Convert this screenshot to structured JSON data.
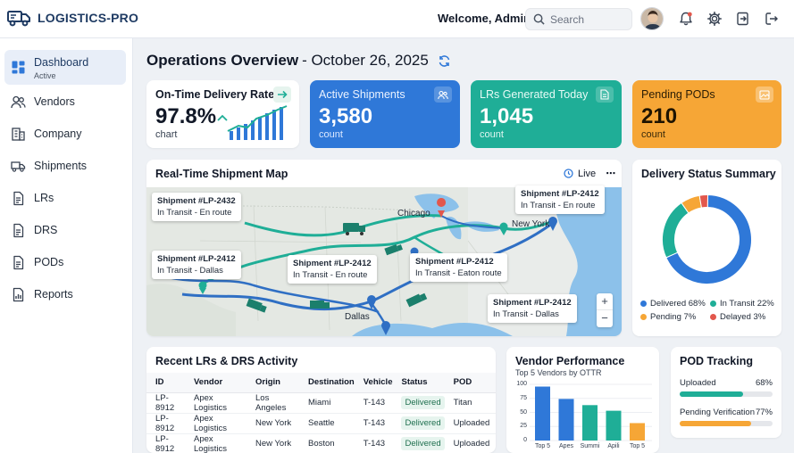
{
  "header": {
    "brand": "LOGISTICS-PRO",
    "welcome": "Welcome, Admin!",
    "search_placeholder": "Search"
  },
  "sidebar": {
    "items": [
      {
        "label": "Dashboard",
        "sub": "Active",
        "icon": "dashboard-icon"
      },
      {
        "label": "Vendors",
        "icon": "users-icon"
      },
      {
        "label": "Company",
        "icon": "building-icon"
      },
      {
        "label": "Shipments",
        "icon": "truck-icon"
      },
      {
        "label": "LRs",
        "icon": "document-icon"
      },
      {
        "label": "DRS",
        "icon": "document-icon"
      },
      {
        "label": "PODs",
        "icon": "document-icon"
      },
      {
        "label": "Reports",
        "icon": "report-icon"
      }
    ]
  },
  "page": {
    "title": "Operations Overview",
    "date": " - October 26, 2025"
  },
  "kpis": [
    {
      "label": "On-Time Delivery Rate",
      "value": "97.8%",
      "unit": "chart",
      "color": "#ffffff"
    },
    {
      "label": "Active Shipments",
      "value": "3,580",
      "unit": "count",
      "color": "#2f78d8"
    },
    {
      "label": "LRs Generated Today",
      "value": "1,045",
      "unit": "count",
      "color": "#1fae97"
    },
    {
      "label": "Pending PODs",
      "value": "210",
      "unit": "count",
      "color": "#f6a636"
    }
  ],
  "map": {
    "title": "Real-Time Shipment Map",
    "live_label": "Live",
    "zoom_in": "+",
    "zoom_out": "−",
    "cities": [
      "Chicago",
      "New York",
      "Dallas"
    ],
    "callouts": [
      {
        "id": "Shipment #LP-2432",
        "status": "In Transit - En route"
      },
      {
        "id": "Shipment #LP-2412",
        "status": "In Transit - En route"
      },
      {
        "id": "Shipment #LP-2412",
        "status": "In Transit - Dallas"
      },
      {
        "id": "Shipment #LP-2412",
        "status": "In Transit - En route"
      },
      {
        "id": "Shipment #LP-2412",
        "status": "In Transit - Eaton route"
      },
      {
        "id": "Shipment #LP-2412",
        "status": "In Transit - Dallas"
      }
    ]
  },
  "delivery_status": {
    "title": "Delivery Status Summary",
    "legend": [
      {
        "label": "Delivered 68%",
        "color": "#2f78d8"
      },
      {
        "label": "In Transit 22%",
        "color": "#1fae97"
      },
      {
        "label": "Pending 7%",
        "color": "#f6a636"
      },
      {
        "label": "Delayed 3%",
        "color": "#e2574c"
      }
    ],
    "chart_data": {
      "type": "pie",
      "categories": [
        "Delivered",
        "In Transit",
        "Pending",
        "Delayed"
      ],
      "values": [
        68,
        22,
        7,
        3
      ]
    }
  },
  "activity": {
    "title": "Recent LRs & DRS Activity",
    "columns": [
      "ID",
      "Vendor",
      "Origin",
      "Destination",
      "Vehicle",
      "Status",
      "POD"
    ],
    "rows": [
      [
        "LP-8912",
        "Apex Logistics",
        "Los Angeles",
        "Miami",
        "T-143",
        "Delivered",
        "Titan"
      ],
      [
        "LP-8912",
        "Apex Logistics",
        "New York",
        "Seattle",
        "T-143",
        "Delivered",
        "Uploaded"
      ],
      [
        "LP-8912",
        "Apex Logistics",
        "New York",
        "Boston",
        "T-143",
        "Delivered",
        "Uploaded"
      ]
    ]
  },
  "vendor_perf": {
    "title": "Vendor Performance",
    "subtitle": "Top 5 Vendors by OTTR",
    "chart_data": {
      "type": "bar",
      "categories": [
        "Top 5",
        "Apes",
        "Summi",
        "Apili",
        "Top 5"
      ],
      "values": [
        96,
        74,
        63,
        53,
        31
      ],
      "colors": [
        "#2f78d8",
        "#2f78d8",
        "#1fae97",
        "#1fae97",
        "#f6a636"
      ],
      "yticks": [
        "100",
        "75",
        "50",
        "25",
        "0"
      ],
      "ylim": [
        0,
        100
      ]
    }
  },
  "pod_tracking": {
    "title": "POD Tracking",
    "items": [
      {
        "label": "Uploaded",
        "pct": "68%",
        "value": 0.68,
        "color": "#1fae97"
      },
      {
        "label": "Pending Verification",
        "pct": "77%",
        "value": 0.77,
        "color": "#f6a636"
      }
    ]
  }
}
